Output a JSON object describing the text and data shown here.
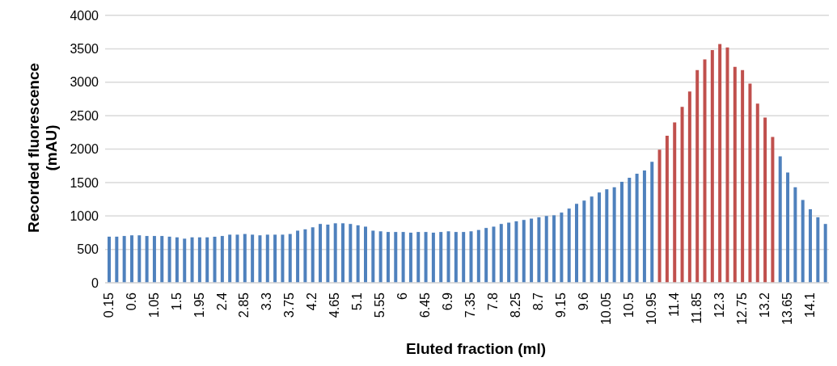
{
  "chart_data": {
    "type": "bar",
    "xlabel": "Eluted fraction (ml)",
    "ylabel": "Recorded fluorescence (mAU)",
    "categories": [
      "0.15",
      null,
      null,
      "0.6",
      null,
      null,
      "1.05",
      null,
      null,
      "1.5",
      null,
      null,
      "1.95",
      null,
      null,
      "2.4",
      null,
      null,
      "2.85",
      null,
      null,
      "3.3",
      null,
      null,
      "3.75",
      null,
      null,
      "4.2",
      null,
      null,
      "4.65",
      null,
      null,
      "5.1",
      null,
      null,
      "5.55",
      null,
      null,
      "6",
      null,
      null,
      "6.45",
      null,
      null,
      "6.9",
      null,
      null,
      "7.35",
      null,
      null,
      "7.8",
      null,
      null,
      "8.25",
      null,
      null,
      "8.7",
      null,
      null,
      "9.15",
      null,
      null,
      "9.6",
      null,
      null,
      "10.05",
      null,
      null,
      "10.5",
      null,
      null,
      "10.95",
      null,
      null,
      "11.4",
      null,
      null,
      "11.85",
      null,
      null,
      "12.3",
      null,
      null,
      "12.75",
      null,
      null,
      "13.2",
      null,
      null,
      "13.65",
      null,
      null,
      "14.1",
      null,
      null
    ],
    "values": [
      690,
      690,
      700,
      710,
      710,
      700,
      700,
      700,
      690,
      680,
      660,
      680,
      680,
      680,
      690,
      700,
      720,
      720,
      730,
      720,
      710,
      720,
      720,
      720,
      730,
      780,
      800,
      830,
      880,
      870,
      890,
      890,
      880,
      860,
      840,
      780,
      770,
      760,
      760,
      760,
      750,
      760,
      760,
      750,
      760,
      770,
      760,
      760,
      770,
      790,
      820,
      840,
      880,
      900,
      920,
      940,
      960,
      980,
      1000,
      1010,
      1050,
      1110,
      1180,
      1230,
      1290,
      1350,
      1400,
      1430,
      1510,
      1570,
      1630,
      1680,
      1810,
      1990,
      2200,
      2400,
      2630,
      2860,
      3180,
      3340,
      3480,
      3570,
      3520,
      3230,
      3180,
      2980,
      2680,
      2470,
      2180,
      1890,
      1650,
      1430,
      1240,
      1100,
      980,
      880
    ],
    "colors": [
      "#4f81bd",
      "#4f81bd",
      "#4f81bd",
      "#4f81bd",
      "#4f81bd",
      "#4f81bd",
      "#4f81bd",
      "#4f81bd",
      "#4f81bd",
      "#4f81bd",
      "#4f81bd",
      "#4f81bd",
      "#4f81bd",
      "#4f81bd",
      "#4f81bd",
      "#4f81bd",
      "#4f81bd",
      "#4f81bd",
      "#4f81bd",
      "#4f81bd",
      "#4f81bd",
      "#4f81bd",
      "#4f81bd",
      "#4f81bd",
      "#4f81bd",
      "#4f81bd",
      "#4f81bd",
      "#4f81bd",
      "#4f81bd",
      "#4f81bd",
      "#4f81bd",
      "#4f81bd",
      "#4f81bd",
      "#4f81bd",
      "#4f81bd",
      "#4f81bd",
      "#4f81bd",
      "#4f81bd",
      "#4f81bd",
      "#4f81bd",
      "#4f81bd",
      "#4f81bd",
      "#4f81bd",
      "#4f81bd",
      "#4f81bd",
      "#4f81bd",
      "#4f81bd",
      "#4f81bd",
      "#4f81bd",
      "#4f81bd",
      "#4f81bd",
      "#4f81bd",
      "#4f81bd",
      "#4f81bd",
      "#4f81bd",
      "#4f81bd",
      "#4f81bd",
      "#4f81bd",
      "#4f81bd",
      "#4f81bd",
      "#4f81bd",
      "#4f81bd",
      "#4f81bd",
      "#4f81bd",
      "#4f81bd",
      "#4f81bd",
      "#4f81bd",
      "#4f81bd",
      "#4f81bd",
      "#4f81bd",
      "#4f81bd",
      "#4f81bd",
      "#4f81bd",
      "#c0504d",
      "#c0504d",
      "#c0504d",
      "#c0504d",
      "#c0504d",
      "#c0504d",
      "#c0504d",
      "#c0504d",
      "#c0504d",
      "#c0504d",
      "#c0504d",
      "#c0504d",
      "#c0504d",
      "#c0504d",
      "#c0504d",
      "#c0504d",
      "#4f81bd",
      "#4f81bd",
      "#4f81bd",
      "#4f81bd",
      "#4f81bd",
      "#4f81bd",
      "#4f81bd"
    ],
    "ylim": [
      0,
      4000
    ],
    "yticks": [
      0,
      500,
      1000,
      1500,
      2000,
      2500,
      3000,
      3500,
      4000
    ],
    "grid": "y",
    "legend": false
  }
}
